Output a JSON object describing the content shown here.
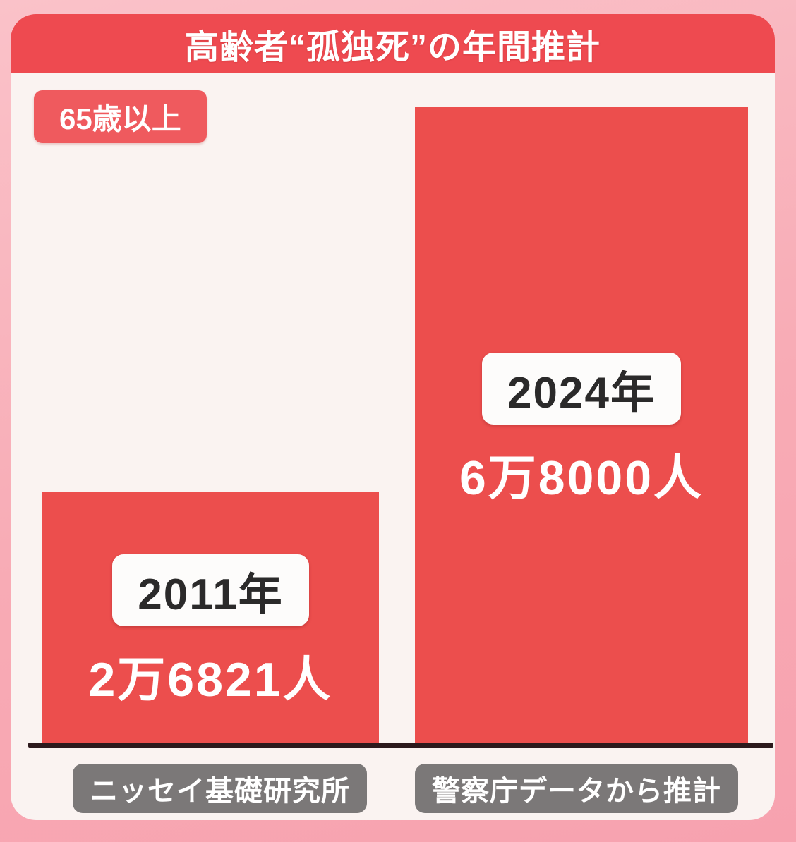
{
  "page": {
    "title": "高齢者“孤独死”の年間推計",
    "age_group_badge": "65歳以上"
  },
  "chart_data": {
    "type": "bar",
    "title": "高齢者“孤独死”の年間推計",
    "annotation": "65歳以上",
    "categories": [
      "2011年",
      "2024年"
    ],
    "values": [
      26821,
      68000
    ],
    "value_labels": [
      "2万6821人",
      "6万8000人"
    ],
    "sources": [
      "ニッセイ基礎研究所",
      "警察庁データから推計"
    ],
    "orientation": "vertical",
    "ylim": [
      0,
      68000
    ],
    "grid": false,
    "legend": "none",
    "bar_color": "#ec4e4d"
  },
  "colors": {
    "background_pink": "#f8abb5",
    "card_offwhite": "#faf3f1",
    "title_band_red": "#ee4a50",
    "age_badge_red": "#ef5a5e",
    "bar_red": "#ec4e4d",
    "baseline_dark": "#2c191c",
    "source_badge_gray": "#7b7878",
    "year_box_white": "#fdfcfb",
    "year_text_black": "#2b2a2a",
    "label_text_white": "#ffffff"
  }
}
